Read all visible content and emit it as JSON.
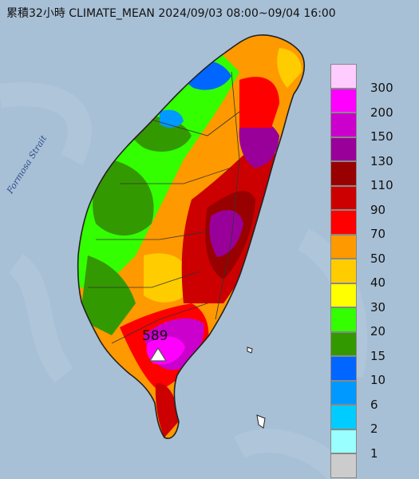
{
  "title": "累積32小時 CLIMATE_MEAN 2024/09/03 08:00~09/04 16:00",
  "strait_label": "Formosa Strait",
  "max_station": {
    "value": "589",
    "icon": "triangle-station-icon"
  },
  "colors": {
    "sea": "#a8c0d6",
    "land_outline": "#222222",
    "county_border": "#333333",
    "station_marker": "#ffffff"
  },
  "legend": [
    {
      "label": "300",
      "color": "#ffccff"
    },
    {
      "label": "200",
      "color": "#ff00ff"
    },
    {
      "label": "150",
      "color": "#cc00cc"
    },
    {
      "label": "130",
      "color": "#990099"
    },
    {
      "label": "110",
      "color": "#990000"
    },
    {
      "label": "90",
      "color": "#cc0000"
    },
    {
      "label": "70",
      "color": "#ff0000"
    },
    {
      "label": "50",
      "color": "#ff9900"
    },
    {
      "label": "40",
      "color": "#ffcc00"
    },
    {
      "label": "30",
      "color": "#ffff00"
    },
    {
      "label": "20",
      "color": "#33ff00"
    },
    {
      "label": "15",
      "color": "#339900"
    },
    {
      "label": "10",
      "color": "#0066ff"
    },
    {
      "label": "6",
      "color": "#0099ff"
    },
    {
      "label": "2",
      "color": "#00ccff"
    },
    {
      "label": "1",
      "color": "#99ffff"
    },
    {
      "label": "",
      "color": "#cccccc"
    }
  ]
}
